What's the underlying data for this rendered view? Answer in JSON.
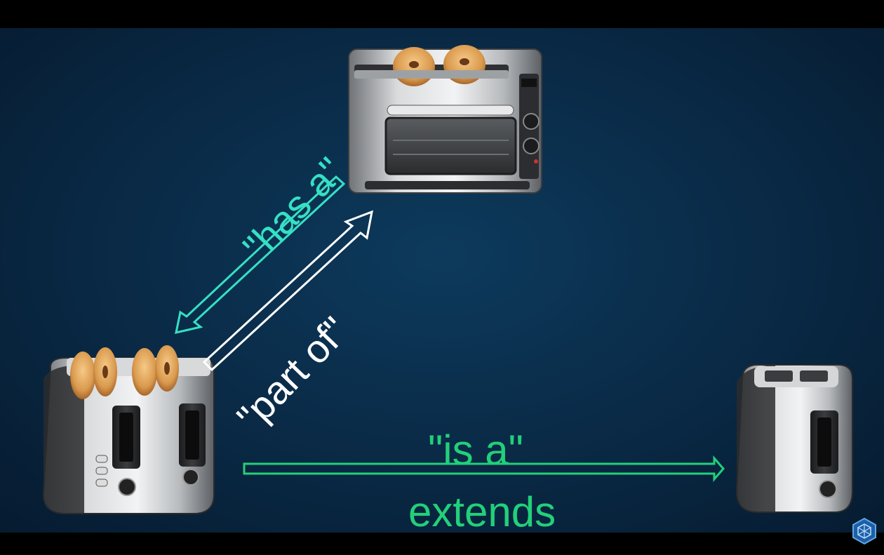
{
  "labels": {
    "has_a": "\"has a\"",
    "part_of": "\"part of\"",
    "is_a": "\"is a\"",
    "extends": "extends"
  },
  "colors": {
    "has_a": "#36e0c4",
    "part_of": "#ffffff",
    "is_a": "#22d07a",
    "background": "#0a2c49"
  },
  "nodes": [
    {
      "id": "toaster-oven",
      "kind": "toaster oven combo with two bagels"
    },
    {
      "id": "four-slice-toaster",
      "kind": "four-slice toaster with bagels"
    },
    {
      "id": "two-slice-toaster",
      "kind": "two-slice toaster"
    }
  ],
  "edges": [
    {
      "from": "toaster-oven",
      "to": "four-slice-toaster",
      "label": "has_a"
    },
    {
      "from": "four-slice-toaster",
      "to": "toaster-oven",
      "label": "part_of"
    },
    {
      "from": "four-slice-toaster",
      "to": "two-slice-toaster",
      "label": "is_a"
    }
  ]
}
